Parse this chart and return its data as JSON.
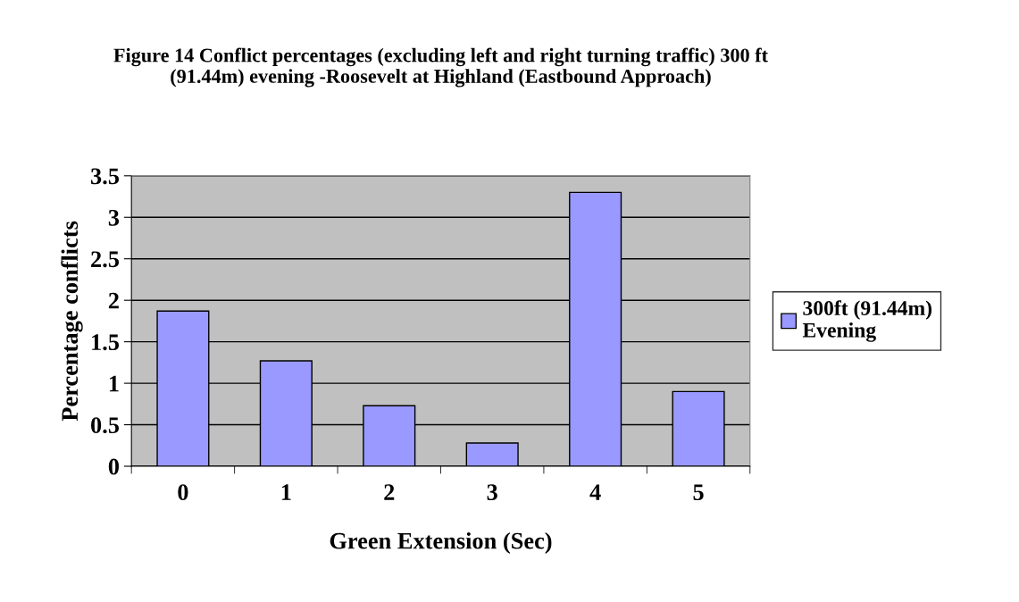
{
  "chart_data": {
    "type": "bar",
    "title": "Figure 14 Conflict percentages (excluding left and right turning traffic) 300 ft\n(91.44m) evening -Roosevelt at Highland (Eastbound Approach)",
    "xlabel": "Green Extension (Sec)",
    "ylabel": "Percentage conflicts",
    "categories": [
      "0",
      "1",
      "2",
      "3",
      "4",
      "5"
    ],
    "series": [
      {
        "name": "300ft (91.44m)\nEvening",
        "color": "#9999ff",
        "values": [
          1.87,
          1.27,
          0.73,
          0.28,
          3.3,
          0.9
        ]
      }
    ],
    "ylim": [
      0,
      3.5
    ],
    "yticks": [
      0,
      0.5,
      1,
      1.5,
      2,
      2.5,
      3,
      3.5
    ],
    "grid": "y",
    "legend": "right"
  }
}
